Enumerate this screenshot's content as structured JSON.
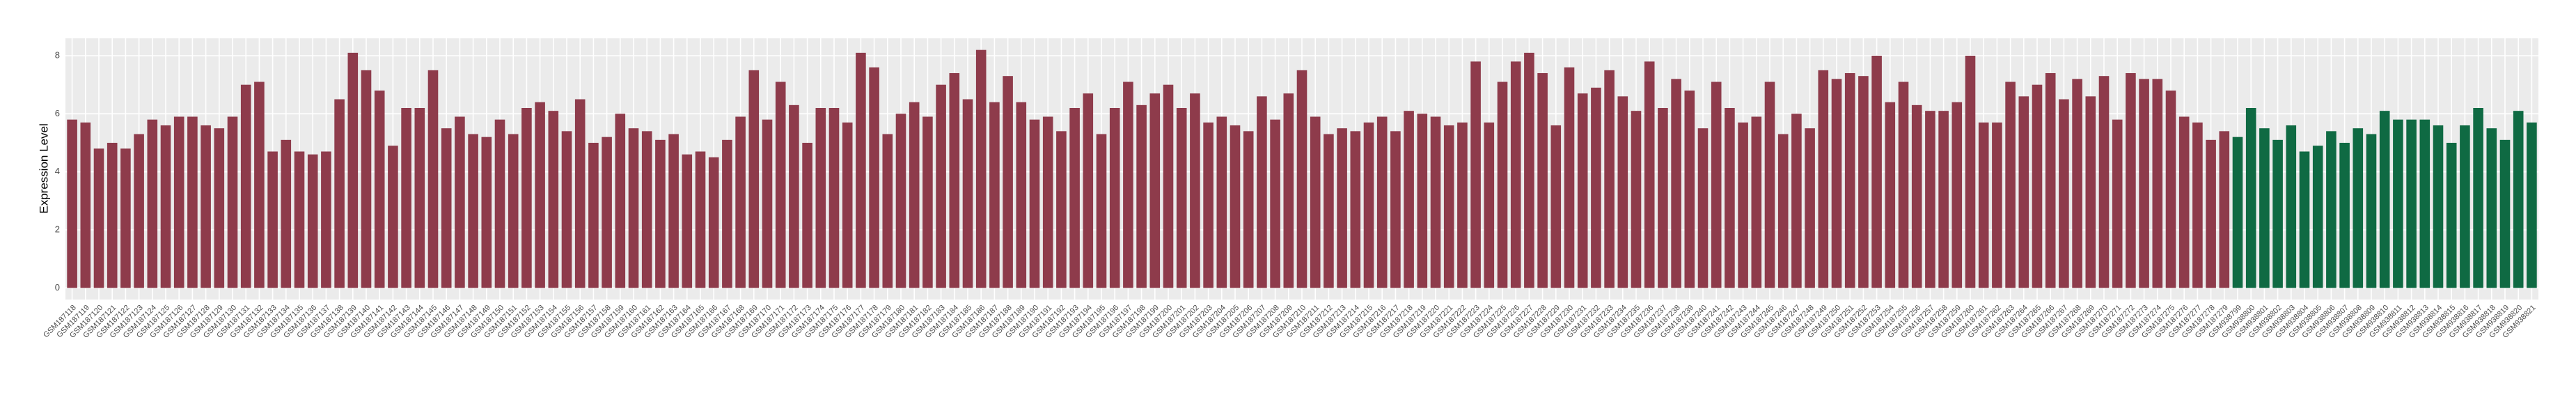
{
  "chart_data": {
    "type": "bar",
    "y_label": "Expression Level",
    "categories": [
      "GSM187118",
      "GSM187119",
      "GSM187120",
      "GSM187121",
      "GSM187122",
      "GSM187123",
      "GSM187124",
      "GSM187125",
      "GSM187126",
      "GSM187127",
      "GSM187128",
      "GSM187129",
      "GSM187130",
      "GSM187131",
      "GSM187132",
      "GSM187133",
      "GSM187134",
      "GSM187135",
      "GSM187136",
      "GSM187137",
      "GSM187138",
      "GSM187139",
      "GSM187140",
      "GSM187141",
      "GSM187142",
      "GSM187143",
      "GSM187144",
      "GSM187145",
      "GSM187146",
      "GSM187147",
      "GSM187148",
      "GSM187149",
      "GSM187150",
      "GSM187151",
      "GSM187152",
      "GSM187153",
      "GSM187154",
      "GSM187155",
      "GSM187156",
      "GSM187157",
      "GSM187158",
      "GSM187159",
      "GSM187160",
      "GSM187161",
      "GSM187162",
      "GSM187163",
      "GSM187164",
      "GSM187165",
      "GSM187166",
      "GSM187167",
      "GSM187168",
      "GSM187169",
      "GSM187170",
      "GSM187171",
      "GSM187172",
      "GSM187173",
      "GSM187174",
      "GSM187175",
      "GSM187176",
      "GSM187177",
      "GSM187178",
      "GSM187179",
      "GSM187180",
      "GSM187181",
      "GSM187182",
      "GSM187183",
      "GSM187184",
      "GSM187185",
      "GSM187186",
      "GSM187187",
      "GSM187188",
      "GSM187189",
      "GSM187190",
      "GSM187191",
      "GSM187192",
      "GSM187193",
      "GSM187194",
      "GSM187195",
      "GSM187196",
      "GSM187197",
      "GSM187198",
      "GSM187199",
      "GSM187200",
      "GSM187201",
      "GSM187202",
      "GSM187203",
      "GSM187204",
      "GSM187205",
      "GSM187206",
      "GSM187207",
      "GSM187208",
      "GSM187209",
      "GSM187210",
      "GSM187211",
      "GSM187212",
      "GSM187213",
      "GSM187214",
      "GSM187215",
      "GSM187216",
      "GSM187217",
      "GSM187218",
      "GSM187219",
      "GSM187220",
      "GSM187221",
      "GSM187222",
      "GSM187223",
      "GSM187224",
      "GSM187225",
      "GSM187226",
      "GSM187227",
      "GSM187228",
      "GSM187229",
      "GSM187230",
      "GSM187231",
      "GSM187232",
      "GSM187233",
      "GSM187234",
      "GSM187235",
      "GSM187236",
      "GSM187237",
      "GSM187238",
      "GSM187239",
      "GSM187240",
      "GSM187241",
      "GSM187242",
      "GSM187243",
      "GSM187244",
      "GSM187245",
      "GSM187246",
      "GSM187247",
      "GSM187248",
      "GSM187249",
      "GSM187250",
      "GSM187251",
      "GSM187252",
      "GSM187253",
      "GSM187254",
      "GSM187255",
      "GSM187256",
      "GSM187257",
      "GSM187258",
      "GSM187259",
      "GSM187260",
      "GSM187261",
      "GSM187262",
      "GSM187263",
      "GSM187264",
      "GSM187265",
      "GSM187266",
      "GSM187267",
      "GSM187268",
      "GSM187269",
      "GSM187270",
      "GSM187271",
      "GSM187272",
      "GSM187273",
      "GSM187274",
      "GSM187275",
      "GSM187276",
      "GSM187277",
      "GSM187278",
      "GSM187279",
      "GSM938799",
      "GSM938800",
      "GSM938801",
      "GSM938802",
      "GSM938803",
      "GSM938804",
      "GSM938805",
      "GSM938806",
      "GSM938807",
      "GSM938808",
      "GSM938809",
      "GSM938810",
      "GSM938811",
      "GSM938812",
      "GSM938813",
      "GSM938814",
      "GSM938815",
      "GSM938816",
      "GSM938817",
      "GSM938818",
      "GSM938819",
      "GSM938820",
      "GSM938821"
    ],
    "values": [
      5.8,
      5.7,
      4.8,
      5.0,
      4.8,
      5.3,
      5.8,
      5.6,
      5.9,
      5.9,
      5.6,
      5.5,
      5.9,
      7.0,
      7.1,
      4.7,
      5.1,
      4.7,
      4.6,
      4.7,
      6.5,
      8.1,
      7.5,
      6.8,
      4.9,
      6.2,
      6.2,
      7.5,
      5.5,
      5.9,
      5.3,
      5.2,
      5.8,
      5.3,
      6.2,
      6.4,
      6.1,
      5.4,
      6.5,
      5.0,
      5.2,
      6.0,
      5.5,
      5.4,
      5.1,
      5.3,
      4.6,
      4.7,
      4.5,
      5.1,
      5.9,
      7.5,
      5.8,
      7.1,
      6.3,
      5.0,
      6.2,
      6.2,
      5.7,
      8.1,
      7.6,
      5.3,
      6.0,
      6.4,
      5.9,
      7.0,
      7.4,
      6.5,
      8.2,
      6.4,
      7.3,
      6.4,
      5.8,
      5.9,
      5.4,
      6.2,
      6.7,
      5.3,
      6.2,
      7.1,
      6.3,
      6.7,
      7.0,
      6.2,
      6.7,
      5.7,
      5.9,
      5.6,
      5.4,
      6.6,
      5.8,
      6.7,
      7.5,
      5.9,
      5.3,
      5.5,
      5.4,
      5.7,
      5.9,
      5.4,
      6.1,
      6.0,
      5.9,
      5.6,
      5.7,
      7.8,
      5.7,
      7.1,
      7.8,
      8.1,
      7.4,
      5.6,
      7.6,
      6.7,
      6.9,
      7.5,
      6.6,
      6.1,
      7.8,
      6.2,
      7.2,
      6.8,
      5.5,
      7.1,
      6.2,
      5.7,
      5.9,
      7.1,
      5.3,
      6.0,
      5.5,
      7.5,
      7.2,
      7.4,
      7.3,
      8.0,
      6.4,
      7.1,
      6.3,
      6.1,
      6.1,
      6.4,
      8.0,
      5.7,
      5.7,
      7.1,
      6.6,
      7.0,
      7.4,
      6.5,
      7.2,
      6.6,
      7.3,
      5.8,
      7.4,
      7.2,
      7.2,
      6.8,
      5.9,
      5.7,
      5.1,
      5.4,
      5.2,
      6.2,
      5.5,
      5.1,
      5.6,
      4.7,
      4.9,
      5.4,
      5.0,
      5.5,
      5.3,
      6.1,
      5.8,
      5.8,
      5.8,
      5.6,
      5.0,
      5.6,
      6.2,
      5.5,
      5.1,
      6.1,
      5.7
    ],
    "colors": [
      "#8e3b4b",
      "#8e3b4b",
      "#8e3b4b",
      "#8e3b4b",
      "#8e3b4b",
      "#8e3b4b",
      "#8e3b4b",
      "#8e3b4b",
      "#8e3b4b",
      "#8e3b4b",
      "#8e3b4b",
      "#8e3b4b",
      "#8e3b4b",
      "#8e3b4b",
      "#8e3b4b",
      "#8e3b4b",
      "#8e3b4b",
      "#8e3b4b",
      "#8e3b4b",
      "#8e3b4b",
      "#8e3b4b",
      "#8e3b4b",
      "#8e3b4b",
      "#8e3b4b",
      "#8e3b4b",
      "#8e3b4b",
      "#8e3b4b",
      "#8e3b4b",
      "#8e3b4b",
      "#8e3b4b",
      "#8e3b4b",
      "#8e3b4b",
      "#8e3b4b",
      "#8e3b4b",
      "#8e3b4b",
      "#8e3b4b",
      "#8e3b4b",
      "#8e3b4b",
      "#8e3b4b",
      "#8e3b4b",
      "#8e3b4b",
      "#8e3b4b",
      "#8e3b4b",
      "#8e3b4b",
      "#8e3b4b",
      "#8e3b4b",
      "#8e3b4b",
      "#8e3b4b",
      "#8e3b4b",
      "#8e3b4b",
      "#8e3b4b",
      "#8e3b4b",
      "#8e3b4b",
      "#8e3b4b",
      "#8e3b4b",
      "#8e3b4b",
      "#8e3b4b",
      "#8e3b4b",
      "#8e3b4b",
      "#8e3b4b",
      "#8e3b4b",
      "#8e3b4b",
      "#8e3b4b",
      "#8e3b4b",
      "#8e3b4b",
      "#8e3b4b",
      "#8e3b4b",
      "#8e3b4b",
      "#8e3b4b",
      "#8e3b4b",
      "#8e3b4b",
      "#8e3b4b",
      "#8e3b4b",
      "#8e3b4b",
      "#8e3b4b",
      "#8e3b4b",
      "#8e3b4b",
      "#8e3b4b",
      "#8e3b4b",
      "#8e3b4b",
      "#8e3b4b",
      "#8e3b4b",
      "#8e3b4b",
      "#8e3b4b",
      "#8e3b4b",
      "#8e3b4b",
      "#8e3b4b",
      "#8e3b4b",
      "#8e3b4b",
      "#8e3b4b",
      "#8e3b4b",
      "#8e3b4b",
      "#8e3b4b",
      "#8e3b4b",
      "#8e3b4b",
      "#8e3b4b",
      "#8e3b4b",
      "#8e3b4b",
      "#8e3b4b",
      "#8e3b4b",
      "#8e3b4b",
      "#8e3b4b",
      "#8e3b4b",
      "#8e3b4b",
      "#8e3b4b",
      "#8e3b4b",
      "#8e3b4b",
      "#8e3b4b",
      "#8e3b4b",
      "#8e3b4b",
      "#8e3b4b",
      "#8e3b4b",
      "#8e3b4b",
      "#8e3b4b",
      "#8e3b4b",
      "#8e3b4b",
      "#8e3b4b",
      "#8e3b4b",
      "#8e3b4b",
      "#8e3b4b",
      "#8e3b4b",
      "#8e3b4b",
      "#8e3b4b",
      "#8e3b4b",
      "#8e3b4b",
      "#8e3b4b",
      "#8e3b4b",
      "#8e3b4b",
      "#8e3b4b",
      "#8e3b4b",
      "#8e3b4b",
      "#8e3b4b",
      "#8e3b4b",
      "#8e3b4b",
      "#8e3b4b",
      "#8e3b4b",
      "#8e3b4b",
      "#8e3b4b",
      "#8e3b4b",
      "#8e3b4b",
      "#8e3b4b",
      "#8e3b4b",
      "#8e3b4b",
      "#8e3b4b",
      "#8e3b4b",
      "#8e3b4b",
      "#8e3b4b",
      "#8e3b4b",
      "#8e3b4b",
      "#8e3b4b",
      "#8e3b4b",
      "#8e3b4b",
      "#8e3b4b",
      "#8e3b4b",
      "#8e3b4b",
      "#8e3b4b",
      "#8e3b4b",
      "#8e3b4b",
      "#8e3b4b",
      "#8e3b4b",
      "#8e3b4b",
      "#8e3b4b",
      "#0f6a43",
      "#0f6a43",
      "#0f6a43",
      "#0f6a43",
      "#0f6a43",
      "#0f6a43",
      "#0f6a43",
      "#0f6a43",
      "#0f6a43",
      "#0f6a43",
      "#0f6a43",
      "#0f6a43",
      "#0f6a43",
      "#0f6a43",
      "#0f6a43",
      "#0f6a43",
      "#0f6a43",
      "#0f6a43",
      "#0f6a43",
      "#0f6a43",
      "#0f6a43",
      "#0f6a43",
      "#0f6a43"
    ],
    "ylim": [
      -0.4,
      8.6
    ],
    "yticks": [
      0,
      2,
      4,
      6,
      8
    ],
    "grid": true
  }
}
